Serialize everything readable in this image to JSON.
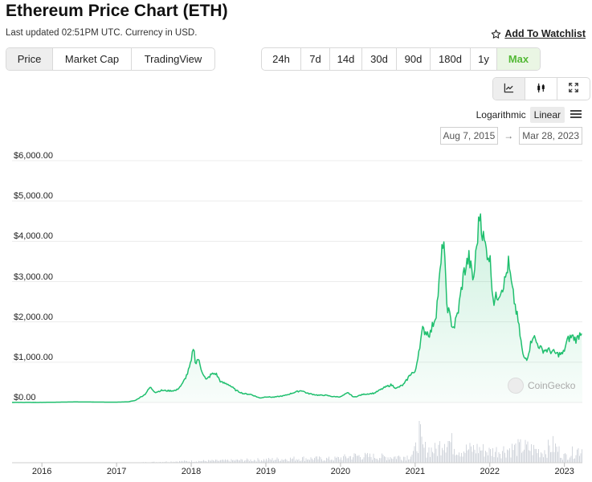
{
  "title": "Ethereum Price Chart (ETH)",
  "subtitle": "Last updated 02:51PM UTC. Currency in USD.",
  "watchlist_label": "Add To Watchlist",
  "view_tabs": [
    "Price",
    "Market Cap",
    "TradingView"
  ],
  "range_tabs": [
    "24h",
    "7d",
    "14d",
    "30d",
    "90d",
    "180d",
    "1y",
    "Max"
  ],
  "chart_type_buttons": [
    "line-chart-icon",
    "candlestick-icon",
    "expand-icon"
  ],
  "scale": {
    "log_label": "Logarithmic",
    "linear_label": "Linear",
    "selected": "Linear"
  },
  "date_range": {
    "from": "Aug 7, 2015",
    "arrow": "→",
    "to": "Mar 28, 2023"
  },
  "watermark": "CoinGecko",
  "colors": {
    "line": "#1fbf6e",
    "fill": "#e9f8ec",
    "volume": "#d2d6dc",
    "accent": "#53b935"
  },
  "chart_data": {
    "type": "area",
    "y_tick_labels": [
      "$0.00",
      "$1,000.00",
      "$2,000.00",
      "$3,000.00",
      "$4,000.00",
      "$5,000.00",
      "$6,000.00"
    ],
    "x_tick_labels": [
      "2016",
      "2017",
      "2018",
      "2019",
      "2020",
      "2021",
      "2022",
      "2023"
    ],
    "ylim": [
      0,
      6000
    ],
    "xlim": [
      2015.6,
      2023.24
    ],
    "grid": true,
    "series": [
      {
        "values": [
          [
            2015.6,
            1
          ],
          [
            2016.0,
            1
          ],
          [
            2016.3,
            10
          ],
          [
            2016.45,
            14
          ],
          [
            2016.6,
            12
          ],
          [
            2016.9,
            8
          ],
          [
            2017.0,
            8
          ],
          [
            2017.15,
            15
          ],
          [
            2017.25,
            50
          ],
          [
            2017.38,
            200
          ],
          [
            2017.45,
            380
          ],
          [
            2017.52,
            250
          ],
          [
            2017.6,
            300
          ],
          [
            2017.7,
            290
          ],
          [
            2017.8,
            300
          ],
          [
            2017.88,
            450
          ],
          [
            2017.95,
            720
          ],
          [
            2018.0,
            1000
          ],
          [
            2018.03,
            1400
          ],
          [
            2018.06,
            950
          ],
          [
            2018.09,
            1100
          ],
          [
            2018.13,
            850
          ],
          [
            2018.2,
            550
          ],
          [
            2018.27,
            700
          ],
          [
            2018.33,
            720
          ],
          [
            2018.4,
            500
          ],
          [
            2018.5,
            450
          ],
          [
            2018.6,
            300
          ],
          [
            2018.7,
            220
          ],
          [
            2018.8,
            200
          ],
          [
            2018.92,
            110
          ],
          [
            2019.0,
            140
          ],
          [
            2019.1,
            130
          ],
          [
            2019.25,
            170
          ],
          [
            2019.4,
            260
          ],
          [
            2019.48,
            300
          ],
          [
            2019.55,
            230
          ],
          [
            2019.7,
            180
          ],
          [
            2019.8,
            180
          ],
          [
            2019.9,
            145
          ],
          [
            2020.0,
            140
          ],
          [
            2020.1,
            240
          ],
          [
            2020.18,
            130
          ],
          [
            2020.3,
            200
          ],
          [
            2020.45,
            230
          ],
          [
            2020.6,
            380
          ],
          [
            2020.68,
            440
          ],
          [
            2020.75,
            350
          ],
          [
            2020.85,
            450
          ],
          [
            2020.95,
            740
          ],
          [
            2021.0,
            730
          ],
          [
            2021.05,
            1300
          ],
          [
            2021.1,
            1800
          ],
          [
            2021.2,
            1700
          ],
          [
            2021.28,
            2200
          ],
          [
            2021.35,
            3500
          ],
          [
            2021.38,
            4200
          ],
          [
            2021.42,
            2500
          ],
          [
            2021.48,
            2000
          ],
          [
            2021.52,
            1850
          ],
          [
            2021.58,
            2300
          ],
          [
            2021.65,
            3200
          ],
          [
            2021.72,
            3600
          ],
          [
            2021.78,
            3000
          ],
          [
            2021.83,
            4000
          ],
          [
            2021.87,
            4800
          ],
          [
            2021.9,
            4200
          ],
          [
            2021.95,
            3800
          ],
          [
            2022.0,
            3600
          ],
          [
            2022.05,
            2500
          ],
          [
            2022.12,
            2700
          ],
          [
            2022.2,
            3000
          ],
          [
            2022.25,
            3450
          ],
          [
            2022.3,
            2800
          ],
          [
            2022.38,
            2000
          ],
          [
            2022.45,
            1100
          ],
          [
            2022.5,
            1100
          ],
          [
            2022.58,
            1700
          ],
          [
            2022.62,
            1500
          ],
          [
            2022.7,
            1300
          ],
          [
            2022.78,
            1300
          ],
          [
            2022.85,
            1250
          ],
          [
            2022.9,
            1200
          ],
          [
            2022.98,
            1200
          ],
          [
            2023.04,
            1550
          ],
          [
            2023.1,
            1650
          ],
          [
            2023.16,
            1550
          ],
          [
            2023.22,
            1750
          ],
          [
            2023.24,
            1780
          ]
        ]
      }
    ],
    "volume_relative": [
      [
        2015.6,
        0.0
      ],
      [
        2016.9,
        0.0
      ],
      [
        2017.3,
        0.01
      ],
      [
        2017.8,
        0.04
      ],
      [
        2018.0,
        0.05
      ],
      [
        2018.5,
        0.07
      ],
      [
        2019.0,
        0.1
      ],
      [
        2019.5,
        0.14
      ],
      [
        2019.9,
        0.12
      ],
      [
        2020.2,
        0.22
      ],
      [
        2020.6,
        0.18
      ],
      [
        2020.9,
        0.2
      ],
      [
        2021.0,
        0.35
      ],
      [
        2021.05,
        1.0
      ],
      [
        2021.1,
        0.45
      ],
      [
        2021.3,
        0.4
      ],
      [
        2021.38,
        0.8
      ],
      [
        2021.42,
        0.75
      ],
      [
        2021.6,
        0.4
      ],
      [
        2021.85,
        0.45
      ],
      [
        2022.0,
        0.35
      ],
      [
        2022.45,
        0.5
      ],
      [
        2022.7,
        0.35
      ],
      [
        2022.85,
        0.55
      ],
      [
        2023.0,
        0.2
      ],
      [
        2023.22,
        0.45
      ]
    ]
  }
}
